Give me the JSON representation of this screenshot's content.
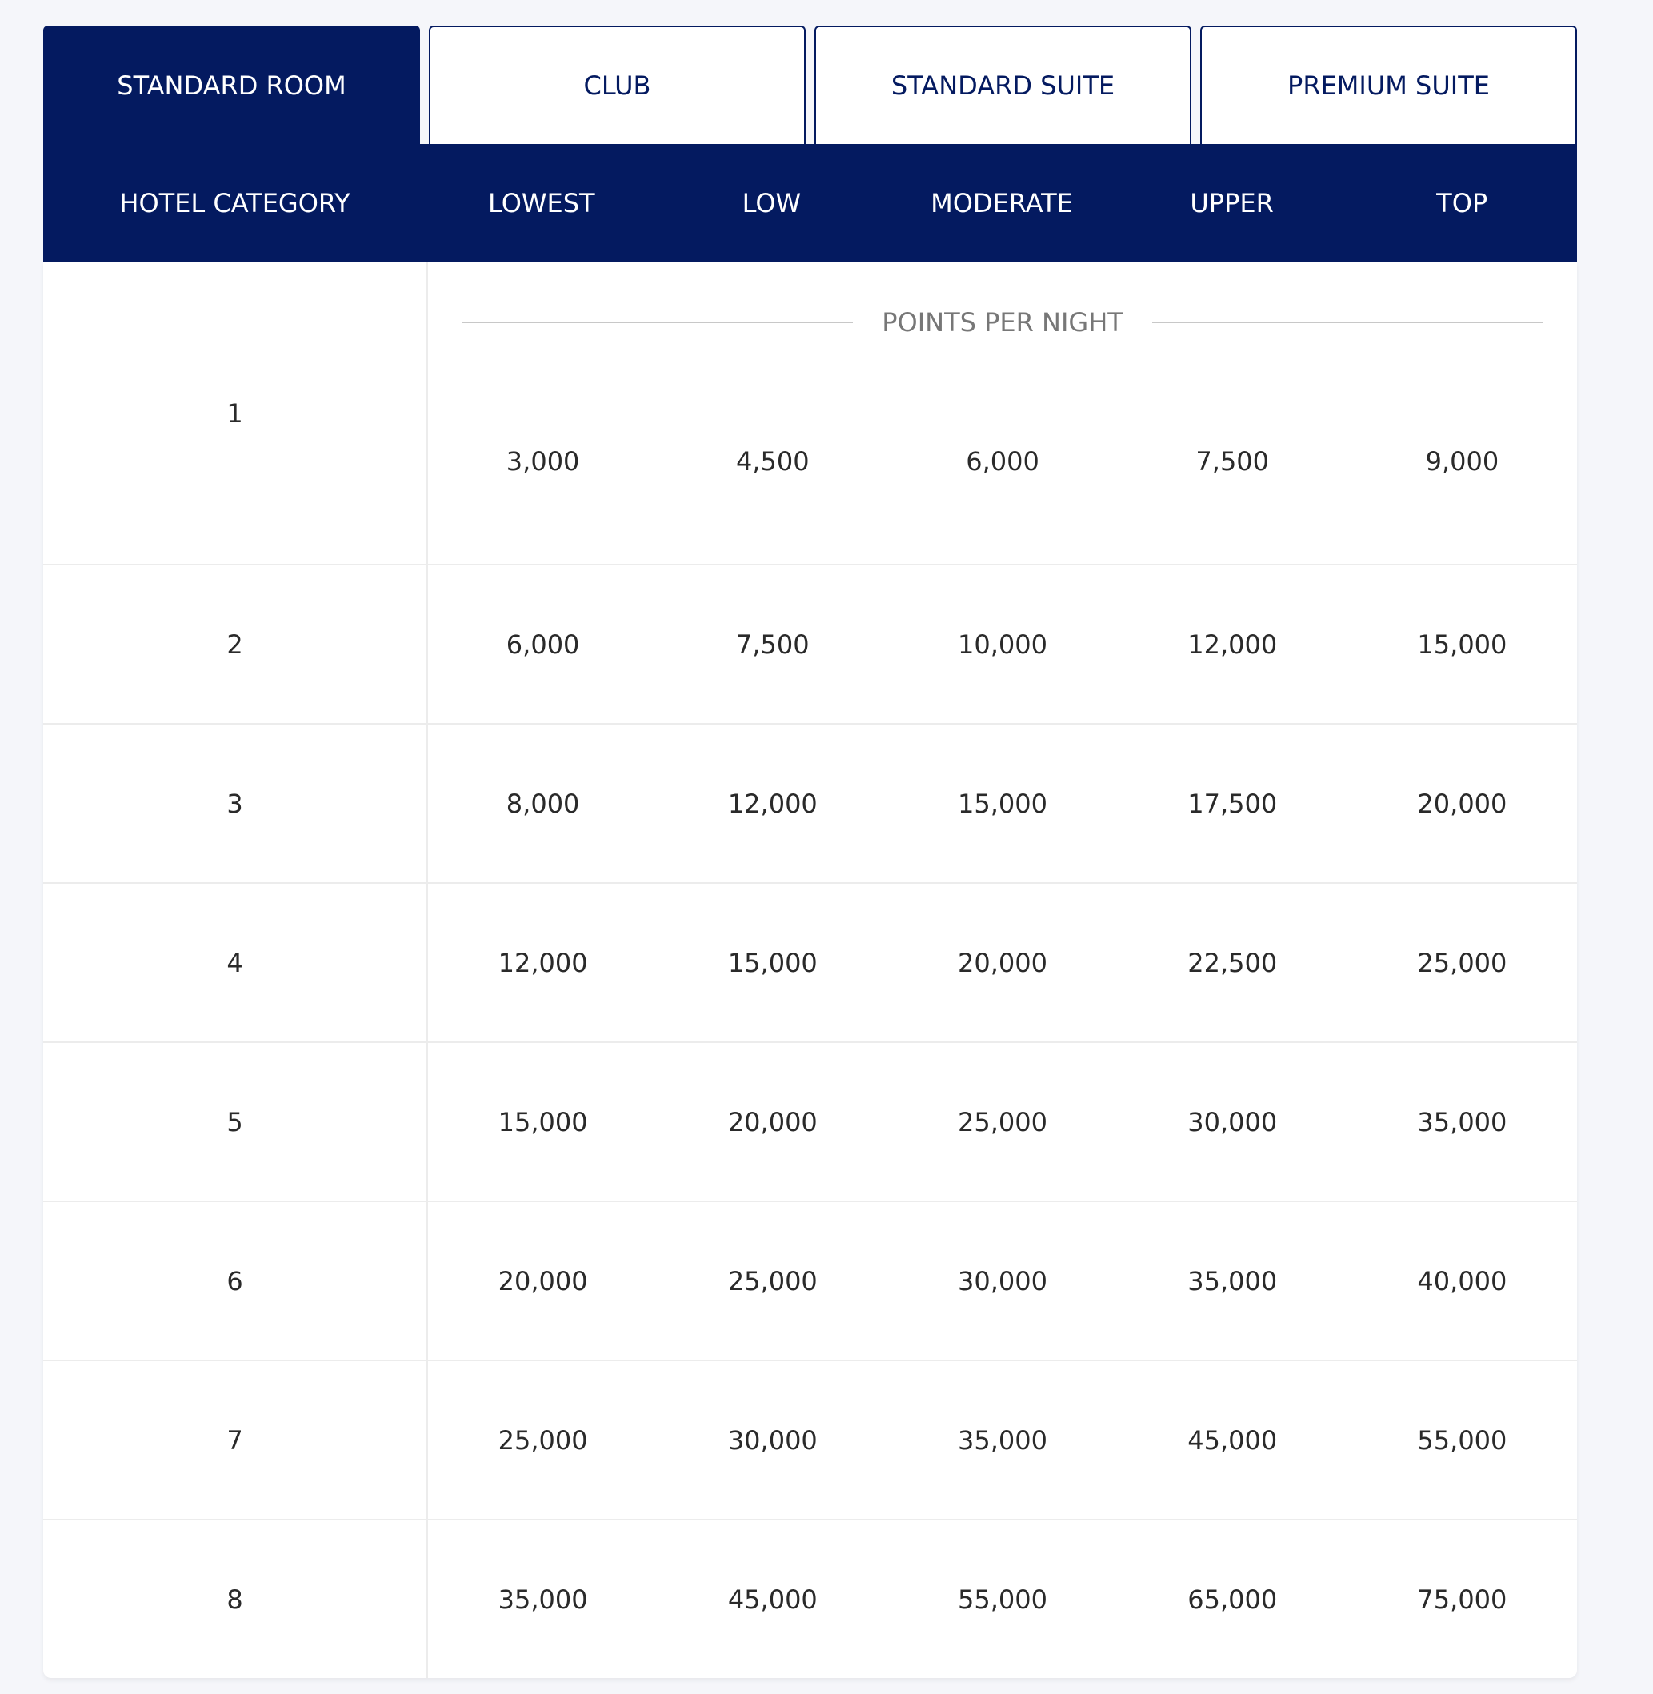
{
  "tabs": [
    {
      "label": "STANDARD ROOM",
      "active": true
    },
    {
      "label": "CLUB"
    },
    {
      "label": "STANDARD SUITE"
    },
    {
      "label": "PREMIUM SUITE"
    }
  ],
  "header": {
    "first": "HOTEL CATEGORY",
    "columns": [
      "LOWEST",
      "LOW",
      "MODERATE",
      "UPPER",
      "TOP"
    ]
  },
  "points_label": "POINTS PER NIGHT",
  "rows": [
    {
      "category": "1",
      "values": [
        "3,000",
        "4,500",
        "6,000",
        "7,500",
        "9,000"
      ]
    },
    {
      "category": "2",
      "values": [
        "6,000",
        "7,500",
        "10,000",
        "12,000",
        "15,000"
      ]
    },
    {
      "category": "3",
      "values": [
        "8,000",
        "12,000",
        "15,000",
        "17,500",
        "20,000"
      ]
    },
    {
      "category": "4",
      "values": [
        "12,000",
        "15,000",
        "20,000",
        "22,500",
        "25,000"
      ]
    },
    {
      "category": "5",
      "values": [
        "15,000",
        "20,000",
        "25,000",
        "30,000",
        "35,000"
      ]
    },
    {
      "category": "6",
      "values": [
        "20,000",
        "25,000",
        "30,000",
        "35,000",
        "40,000"
      ]
    },
    {
      "category": "7",
      "values": [
        "25,000",
        "30,000",
        "35,000",
        "45,000",
        "55,000"
      ]
    },
    {
      "category": "8",
      "values": [
        "35,000",
        "45,000",
        "55,000",
        "65,000",
        "75,000"
      ]
    }
  ],
  "colors": {
    "primary": "#041a60",
    "background": "#f5f6fa"
  }
}
